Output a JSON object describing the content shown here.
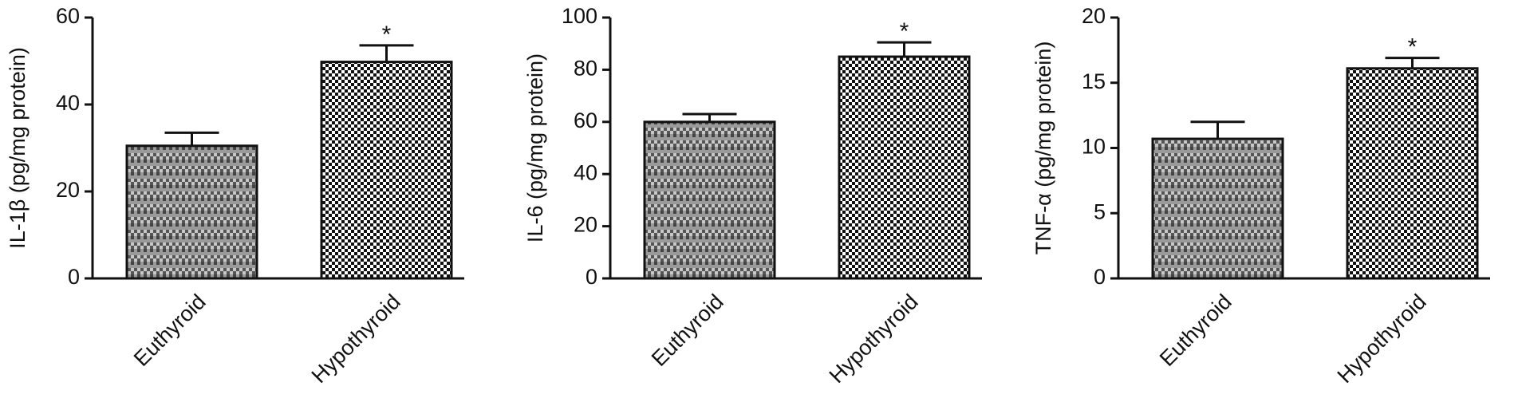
{
  "chart_data": [
    {
      "type": "bar",
      "y_label": "IL-1β (pg/mg protein)",
      "categories": [
        "Euthyroid",
        "Hypothyroid"
      ],
      "values": [
        30.5,
        49.8
      ],
      "errors": [
        3,
        3.8
      ],
      "annotations": [
        null,
        "*"
      ],
      "bar_patterns": [
        "striped",
        "checkered"
      ],
      "ylim": [
        0,
        60
      ],
      "yticks": [
        0,
        20,
        40,
        60
      ]
    },
    {
      "type": "bar",
      "y_label": "IL-6 (pg/mg protein)",
      "categories": [
        "Euthyroid",
        "Hypothyroid"
      ],
      "values": [
        60,
        85
      ],
      "errors": [
        3,
        5.5
      ],
      "annotations": [
        null,
        "*"
      ],
      "bar_patterns": [
        "striped",
        "checkered"
      ],
      "ylim": [
        0,
        100
      ],
      "yticks": [
        0,
        20,
        40,
        60,
        80,
        100
      ]
    },
    {
      "type": "bar",
      "y_label": "TNF-α (pg/mg protein)",
      "categories": [
        "Euthyroid",
        "Hypothyroid"
      ],
      "values": [
        10.7,
        16.1
      ],
      "errors": [
        1.3,
        0.8
      ],
      "annotations": [
        null,
        "*"
      ],
      "bar_patterns": [
        "striped",
        "checkered"
      ],
      "ylim": [
        0,
        20
      ],
      "yticks": [
        0,
        5,
        10,
        15,
        20
      ]
    }
  ]
}
